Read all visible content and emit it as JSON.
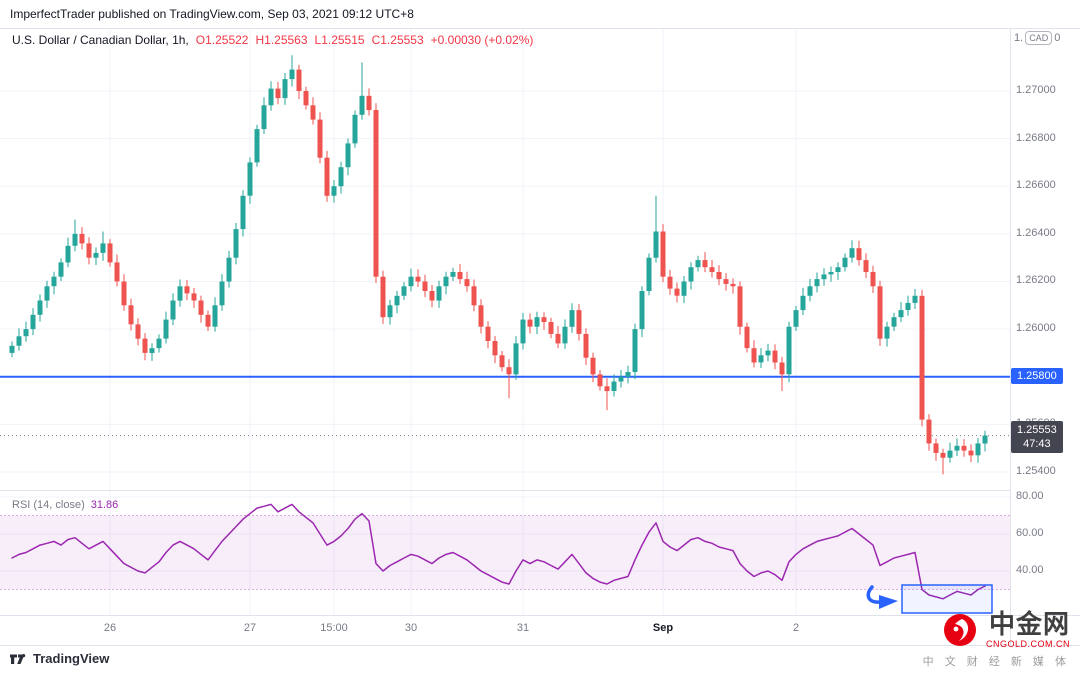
{
  "attribution": "ImperfectTrader published on TradingView.com, Sep 03, 2021 09:12 UTC+8",
  "legend": {
    "title": "U.S. Dollar / Canadian Dollar, 1h,",
    "values": [
      "O1.25522",
      "H1.25563",
      "L1.25515",
      "C1.25553",
      "+0.00030 (+0.02%)"
    ]
  },
  "price_axis": {
    "top_partial_prefix": "1.",
    "currency_badge": "CAD",
    "top_partial_suffix": "0",
    "labels": [
      "1.27000",
      "1.26800",
      "1.26600",
      "1.26400",
      "1.26200",
      "1.26000",
      "1.25600",
      "1.25400"
    ],
    "level_label": "1.25800",
    "last_price": {
      "value": "1.25553",
      "countdown": "47:43"
    }
  },
  "rsi_panel": {
    "title": "RSI (14, close)",
    "value": "31.86",
    "labels": [
      "80.00",
      "60.00",
      "40.00"
    ]
  },
  "time_axis": {
    "ticks": [
      {
        "label": "26",
        "i": 14,
        "major": false
      },
      {
        "label": "27",
        "i": 34,
        "major": false
      },
      {
        "label": "15:00",
        "i": 46,
        "major": false
      },
      {
        "label": "30",
        "i": 57,
        "major": false
      },
      {
        "label": "31",
        "i": 73,
        "major": false
      },
      {
        "label": "Sep",
        "i": 93,
        "major": true
      },
      {
        "label": "2",
        "i": 112,
        "major": false
      }
    ]
  },
  "footer": {
    "brand": "TradingView"
  },
  "watermark": {
    "name": "中金网",
    "domain": "CNGOLD.COM.CN",
    "tagline": "中 文 财 经 新 媒 体"
  },
  "colors": {
    "up": "#26a69a",
    "down": "#ef5350",
    "level_line": "#2962ff",
    "rsi_line": "#9c27b0",
    "annotation": "#2962ff",
    "legend_values": "#f23645",
    "grid": "#f0f3fa"
  },
  "chart_data": [
    {
      "type": "candlestick",
      "title": "U.S. Dollar / Canadian Dollar",
      "interval": "1h",
      "y_axis_range": [
        1.2532,
        1.2726
      ],
      "level_line": {
        "price": 1.258,
        "color": "#2962ff"
      },
      "last_ohlc": {
        "o": 1.25522,
        "h": 1.25563,
        "l": 1.25515,
        "c": 1.25553
      },
      "last_close": 1.25553,
      "first_open": 1.259,
      "closes": [
        1.2593,
        1.2597,
        1.26,
        1.2606,
        1.2612,
        1.2618,
        1.2622,
        1.2628,
        1.2635,
        1.264,
        1.2636,
        1.263,
        1.2632,
        1.2636,
        1.2628,
        1.262,
        1.261,
        1.2602,
        1.2596,
        1.259,
        1.2592,
        1.2596,
        1.2604,
        1.2612,
        1.2618,
        1.2615,
        1.2612,
        1.2606,
        1.2601,
        1.261,
        1.262,
        1.263,
        1.2642,
        1.2656,
        1.267,
        1.2684,
        1.2694,
        1.2701,
        1.2697,
        1.2705,
        1.2709,
        1.27,
        1.2694,
        1.2688,
        1.2672,
        1.2656,
        1.266,
        1.2668,
        1.2678,
        1.269,
        1.2698,
        1.2692,
        1.2622,
        1.2605,
        1.261,
        1.2614,
        1.2618,
        1.2622,
        1.262,
        1.2616,
        1.2612,
        1.2618,
        1.2622,
        1.2624,
        1.2621,
        1.2618,
        1.261,
        1.2601,
        1.2595,
        1.2589,
        1.2584,
        1.2581,
        1.2594,
        1.2604,
        1.2601,
        1.2605,
        1.2603,
        1.2598,
        1.2594,
        1.2601,
        1.2608,
        1.2598,
        1.2588,
        1.2581,
        1.2576,
        1.2574,
        1.2578,
        1.258,
        1.2582,
        1.26,
        1.2616,
        1.263,
        1.2641,
        1.2622,
        1.2617,
        1.2614,
        1.262,
        1.2626,
        1.2629,
        1.2626,
        1.2624,
        1.2621,
        1.2619,
        1.2618,
        1.2601,
        1.2592,
        1.2586,
        1.2589,
        1.2591,
        1.2586,
        1.2581,
        1.2601,
        1.2608,
        1.2614,
        1.2618,
        1.2621,
        1.2623,
        1.2624,
        1.2626,
        1.263,
        1.2634,
        1.2629,
        1.2624,
        1.2618,
        1.2596,
        1.2601,
        1.2605,
        1.2608,
        1.2611,
        1.2614,
        1.2562,
        1.2552,
        1.2548,
        1.2546,
        1.2549,
        1.2551,
        1.2549,
        1.2547,
        1.2552,
        1.25553
      ],
      "wick_overrides": {
        "9": {
          "h": 1.2646
        },
        "13": {
          "h": 1.2641
        },
        "40": {
          "h": 1.2715
        },
        "50": {
          "h": 1.2712
        },
        "71": {
          "l": 1.2571
        },
        "85": {
          "l": 1.2566
        },
        "92": {
          "h": 1.2656
        },
        "110": {
          "l": 1.2574
        },
        "133": {
          "l": 1.2539
        }
      }
    },
    {
      "type": "line",
      "name": "RSI (14, close)",
      "color": "#9c27b0",
      "band": [
        30,
        70
      ],
      "band_fill": "rgba(156,39,176,0.08)",
      "y_axis_range": [
        20,
        85
      ],
      "last": 31.86,
      "values": [
        47,
        49,
        50,
        52,
        54,
        55,
        56,
        54,
        57,
        58,
        55,
        52,
        54,
        56,
        52,
        48,
        44,
        42,
        40,
        39,
        42,
        45,
        50,
        54,
        56,
        54,
        52,
        49,
        46,
        51,
        56,
        60,
        64,
        68,
        71,
        74,
        75,
        76,
        72,
        74,
        76,
        72,
        69,
        66,
        60,
        54,
        56,
        59,
        63,
        68,
        71,
        67,
        44,
        40,
        43,
        45,
        47,
        49,
        48,
        46,
        44,
        47,
        49,
        50,
        48,
        46,
        43,
        40,
        38,
        36,
        34,
        33,
        40,
        46,
        44,
        46,
        45,
        43,
        41,
        45,
        49,
        44,
        39,
        36,
        34,
        33,
        35,
        36,
        37,
        46,
        54,
        61,
        66,
        56,
        53,
        51,
        54,
        57,
        58,
        56,
        55,
        53,
        52,
        51,
        44,
        40,
        37,
        39,
        40,
        38,
        35,
        45,
        49,
        52,
        54,
        56,
        57,
        58,
        59,
        61,
        63,
        60,
        57,
        54,
        43,
        45,
        47,
        48,
        49,
        50,
        30,
        27,
        26,
        25,
        27,
        29,
        28,
        27,
        30,
        31.86
      ]
    }
  ]
}
